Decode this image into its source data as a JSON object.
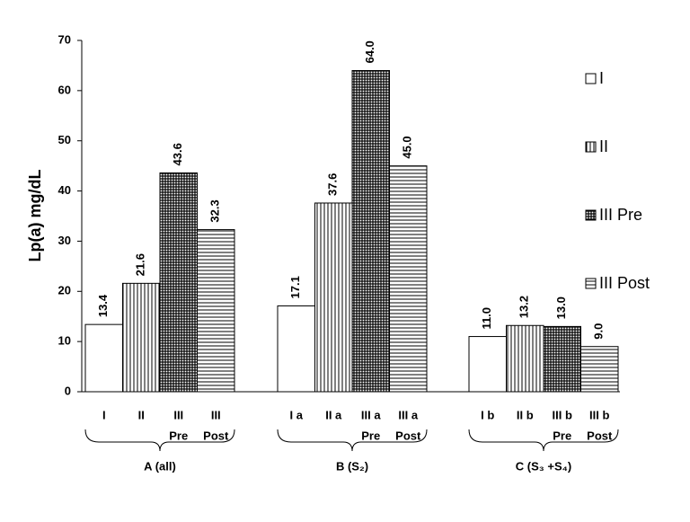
{
  "chart_data": {
    "type": "bar",
    "y_label": "Lp(a) mg/dL",
    "categories": [
      "A (all)",
      "B (S₂)",
      "C (S₃ +S₄)"
    ],
    "bar_labels": [
      [
        "I",
        "II",
        "III",
        "III"
      ],
      [
        "I a",
        "II a",
        "III a",
        "III a"
      ],
      [
        "I b",
        "II b",
        "III b",
        "III b"
      ]
    ],
    "bar_sublabels": [
      [
        null,
        null,
        "Pre",
        "Post"
      ],
      [
        null,
        null,
        "Pre",
        "Post"
      ],
      [
        null,
        null,
        "Pre",
        "Post"
      ]
    ],
    "series": [
      {
        "name": "I",
        "color": "#000000",
        "pattern": "none",
        "values": [
          13.4,
          17.1,
          11.0
        ],
        "value_labels": [
          "13.4",
          "17.1",
          "11.0"
        ]
      },
      {
        "name": "II",
        "color": "#000000",
        "pattern": "vertical",
        "values": [
          21.6,
          37.6,
          13.2
        ],
        "value_labels": [
          "21.6",
          "37.6",
          "13.2"
        ]
      },
      {
        "name": "III Pre",
        "color": "#000000",
        "pattern": "grid",
        "values": [
          43.6,
          64.0,
          13.0
        ],
        "value_labels": [
          "43.6",
          "64.0",
          "13.0"
        ]
      },
      {
        "name": "III Post",
        "color": "#000000",
        "pattern": "horizontal",
        "values": [
          32.3,
          45.0,
          9.0
        ],
        "value_labels": [
          "32.3",
          "45.0",
          "9.0"
        ]
      }
    ],
    "ylim": [
      0,
      70
    ],
    "yticks": [
      0,
      10,
      20,
      30,
      40,
      50,
      60,
      70
    ],
    "grid": false,
    "legend": "right"
  }
}
